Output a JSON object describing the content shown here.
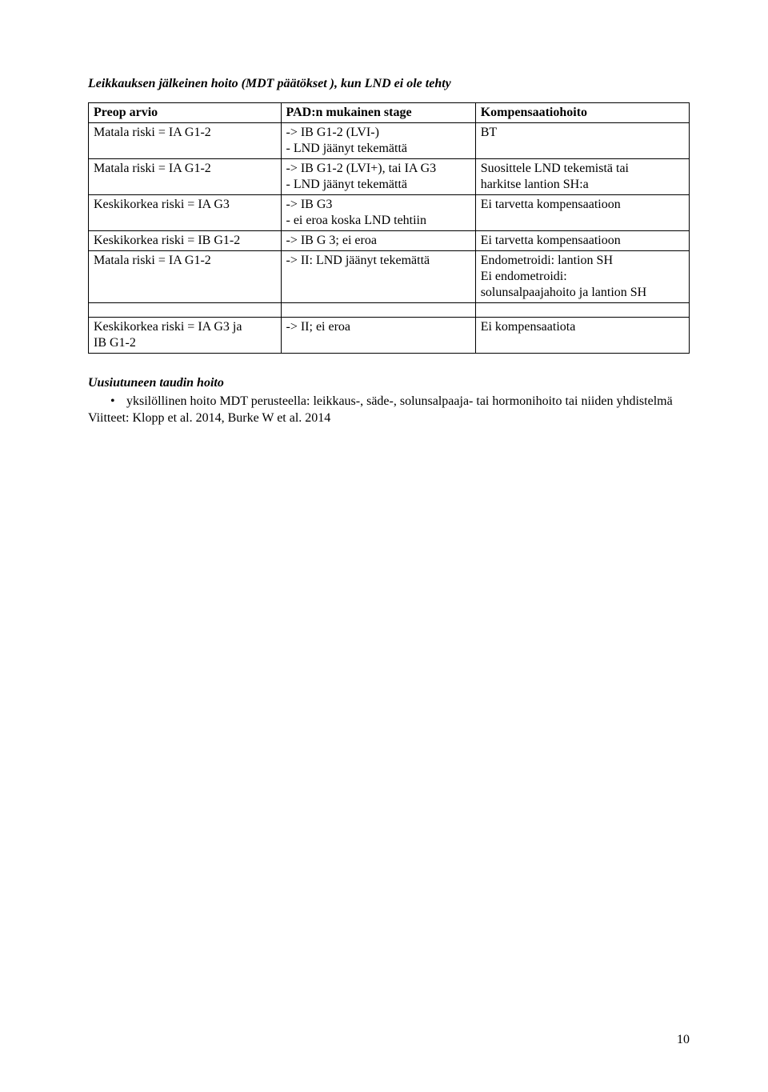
{
  "heading": "Leikkauksen jälkeinen hoito (MDT päätökset ), kun LND ei ole tehty",
  "table": {
    "header": [
      "Preop arvio",
      "PAD:n mukainen stage",
      "Kompensaatiohoito"
    ],
    "rows": [
      {
        "c1": "Matala riski = IA G1-2",
        "c2a": "-> IB G1-2 (LVI-)",
        "c2b": "- LND jäänyt tekemättä",
        "c3": "BT"
      },
      {
        "c1": "Matala riski = IA G1-2",
        "c2a": "-> IB G1-2 (LVI+), tai IA G3",
        "c2b": "- LND jäänyt tekemättä",
        "c3a": "Suosittele LND tekemistä tai",
        "c3b": "harkitse lantion SH:a"
      },
      {
        "c1": "Keskikorkea riski  = IA G3",
        "c2a": "-> IB G3",
        "c2b": "- ei eroa koska LND tehtiin",
        "c3": "Ei tarvetta kompensaatioon"
      },
      {
        "c1": "Keskikorkea riski  = IB G1-2",
        "c2": "-> IB G 3; ei eroa",
        "c3": "Ei tarvetta kompensaatioon"
      },
      {
        "c1": "Matala riski = IA G1-2",
        "c2": "-> II: LND jäänyt tekemättä",
        "c3a": "Endometroidi: lantion SH",
        "c3b": "Ei endometroidi:",
        "c3c": "solunsalpaajahoito ja lantion SH"
      },
      {
        "c1a": "Keskikorkea riski = IA G3 ja",
        "c1b": "IB G1-2",
        "c2": "-> II; ei eroa",
        "c3": "Ei kompensaatiota"
      }
    ]
  },
  "subheading": "Uusiutuneen taudin hoito",
  "bullet": "yksilöllinen hoito MDT perusteella: leikkaus-, säde-, solunsalpaaja- tai hormonihoito tai niiden yhdistelmä",
  "refs": "Viitteet: Klopp et al. 2014, Burke W et al. 2014",
  "pagenum": "10"
}
